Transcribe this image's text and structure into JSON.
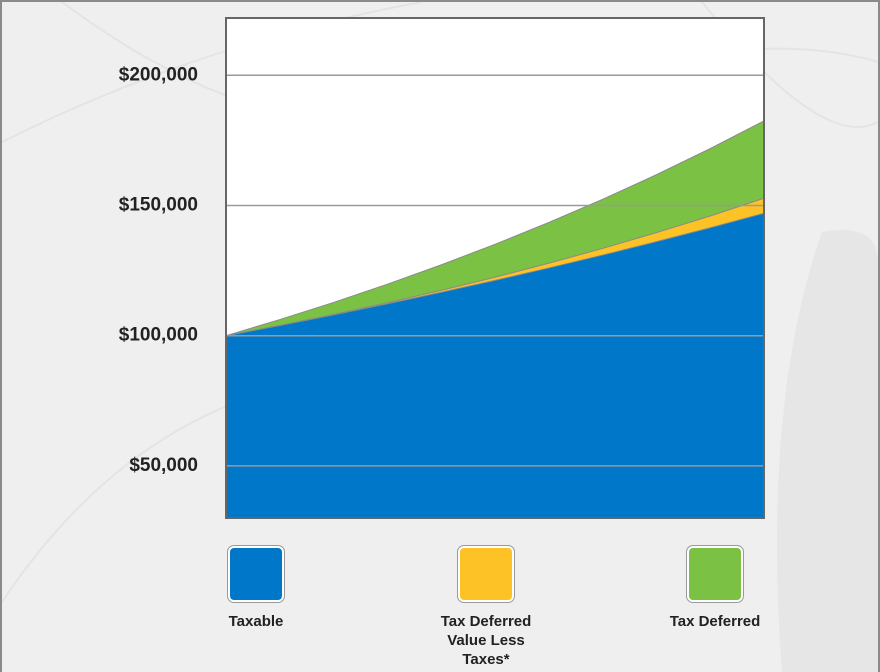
{
  "chart_data": {
    "type": "area",
    "categories": [
      null,
      null,
      null,
      null,
      null,
      null,
      null,
      null,
      null,
      null,
      null
    ],
    "series": [
      {
        "name": "Taxable",
        "color": "#0077c8",
        "values": [
          100000,
          103930,
          108010,
          112260,
          116670,
          121250,
          126020,
          130970,
          136120,
          141460,
          147020
        ]
      },
      {
        "name": "Tax Deferred Value Less Taxes*",
        "color": "#fdc326",
        "values": [
          100000,
          103970,
          108180,
          112660,
          117410,
          122460,
          127820,
          133510,
          139560,
          145980,
          152800
        ]
      },
      {
        "name": "Tax Deferred",
        "color": "#7bc143",
        "values": [
          100000,
          106200,
          112780,
          119780,
          127200,
          135090,
          143470,
          152360,
          161810,
          171840,
          182500
        ]
      }
    ],
    "ylim": [
      30000,
      222000
    ],
    "yticks": [
      {
        "value": 50000,
        "label": "$50,000"
      },
      {
        "value": 100000,
        "label": "$100,000"
      },
      {
        "value": 150000,
        "label": "$150,000"
      },
      {
        "value": 200000,
        "label": "$200,000"
      }
    ],
    "grid": true
  }
}
